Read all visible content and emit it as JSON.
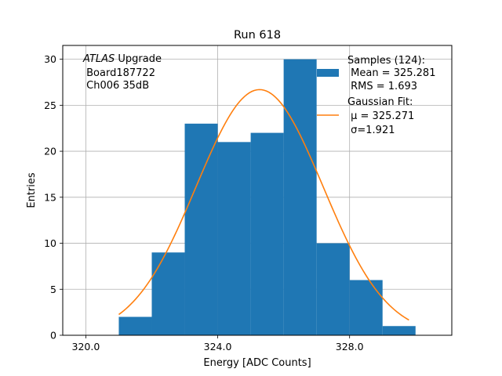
{
  "chart_data": {
    "type": "bar",
    "title": "Run 618",
    "xlabel": "Energy [ADC Counts]",
    "ylabel": "Entries",
    "xlim": [
      319.3,
      331.1
    ],
    "ylim": [
      0,
      31.5
    ],
    "grid": true,
    "xticks": [
      320.0,
      324.0,
      328.0
    ],
    "xtick_labels": [
      "320.0",
      "324.0",
      "328.0"
    ],
    "yticks": [
      0,
      5,
      10,
      15,
      20,
      25,
      30
    ],
    "ytick_labels": [
      "0",
      "5",
      "10",
      "15",
      "20",
      "25",
      "30"
    ],
    "bin_edges": [
      321,
      322,
      323,
      324,
      325,
      326,
      327,
      328,
      329,
      330
    ],
    "values": [
      2,
      9,
      23,
      21,
      22,
      30,
      10,
      6,
      1
    ],
    "bar_color": "#1f77b4",
    "fit": {
      "type": "gaussian",
      "mu": 325.271,
      "sigma": 1.921,
      "amplitude": 26.7,
      "x_range": [
        321,
        329.8
      ],
      "color": "#ff7f0e"
    },
    "annotation": {
      "italic": "ATLAS",
      "rest": " Upgrade",
      "lines": [
        " Board187722",
        " Ch006 35dB"
      ]
    },
    "legend": {
      "placement": "top-right",
      "entries": [
        {
          "lines": [
            "Samples (124):",
            " Mean = 325.281",
            " RMS = 1.693"
          ],
          "kind": "patch"
        },
        {
          "lines": [
            "Gaussian Fit:",
            " μ = 325.271",
            " σ=1.921"
          ],
          "kind": "line"
        }
      ]
    }
  }
}
